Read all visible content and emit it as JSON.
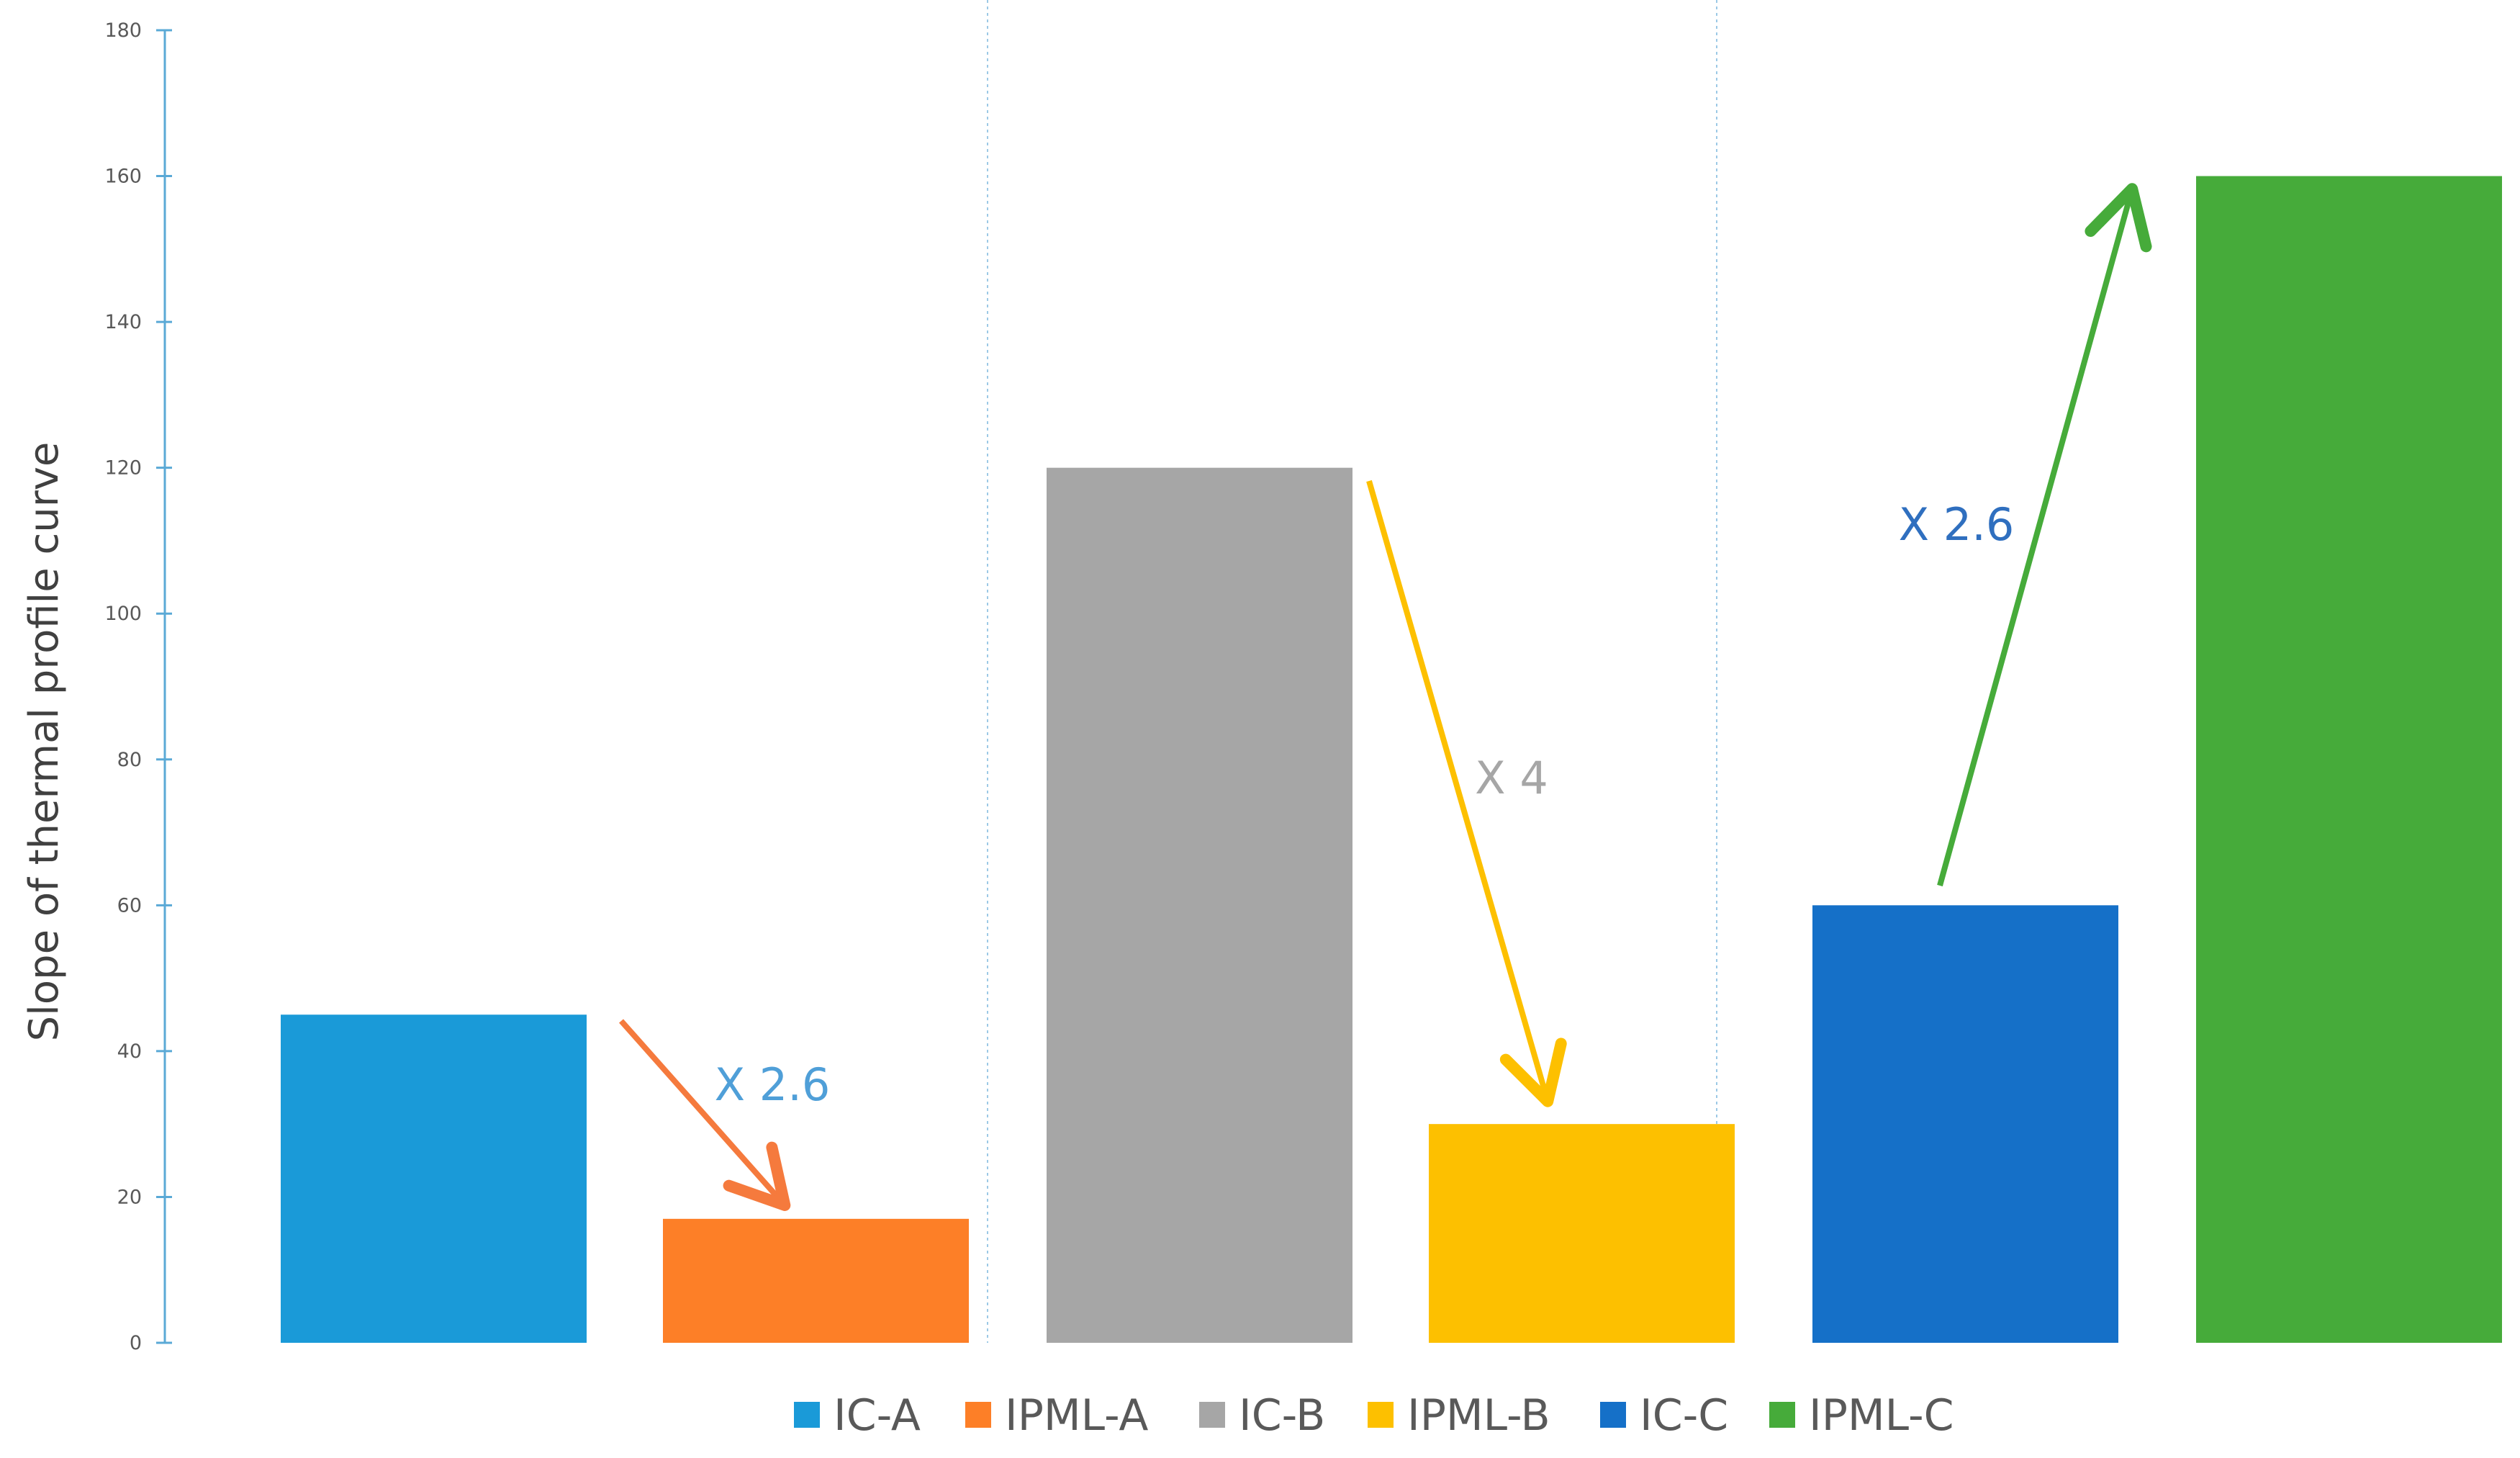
{
  "chart_data": {
    "type": "bar",
    "title": "",
    "xlabel": "",
    "ylabel": "Slope of thermal profile curve",
    "ylim": [
      0,
      180
    ],
    "yticks": [
      0,
      20,
      40,
      60,
      80,
      100,
      120,
      140,
      160,
      180
    ],
    "grid": false,
    "legend_position": "bottom",
    "series": [
      {
        "name": "IC-A",
        "value": 45,
        "color": "#1a9ad8"
      },
      {
        "name": "IPML-A",
        "value": 17,
        "color": "#fd7f27"
      },
      {
        "name": "IC-B",
        "value": 120,
        "color": "#a6a6a6"
      },
      {
        "name": "IPML-B",
        "value": 30,
        "color": "#fdc000"
      },
      {
        "name": "IC-C",
        "value": 60,
        "color": "#1570c8"
      },
      {
        "name": "IPML-C",
        "value": 160,
        "color": "#46ab3a"
      }
    ],
    "annotations": [
      {
        "text": "X 2.6",
        "from": "IC-A",
        "to": "IPML-A",
        "arrow_color": "#f57a3d",
        "text_color": "#4f9fd8"
      },
      {
        "text": "X 4",
        "from": "IC-B",
        "to": "IPML-B",
        "arrow_color": "#fdc000",
        "text_color": "#a6a6a6"
      },
      {
        "text": "X 2.6",
        "from": "IC-C",
        "to": "IPML-C",
        "arrow_color": "#46ab3a",
        "text_color": "#2f6fbf"
      }
    ],
    "colors": {
      "axis": "#5aa9d6",
      "separator": "#9cc9e6"
    }
  }
}
